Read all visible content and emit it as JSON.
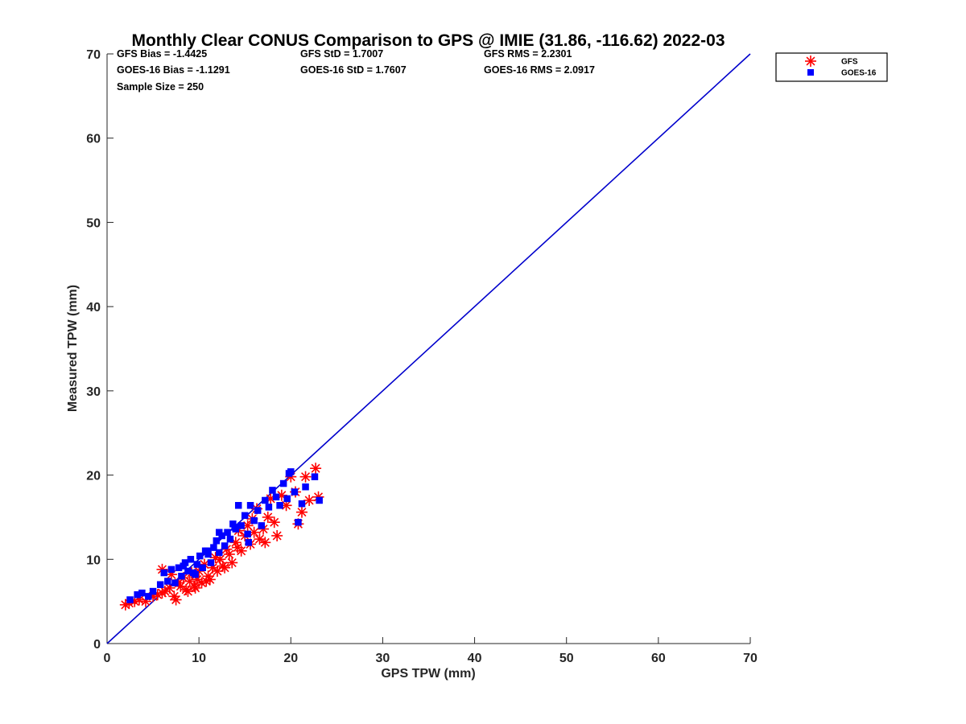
{
  "chart_data": {
    "type": "scatter",
    "title": "Monthly Clear CONUS Comparison to GPS @ IMIE (31.86, -116.62) 2022-03",
    "xlabel": "GPS TPW (mm)",
    "ylabel": "Measured TPW (mm)",
    "xlim": [
      0,
      70
    ],
    "ylim": [
      0,
      70
    ],
    "xticks": [
      "0",
      "10",
      "20",
      "30",
      "40",
      "50",
      "60",
      "70"
    ],
    "yticks": [
      "0",
      "10",
      "20",
      "30",
      "40",
      "50",
      "60",
      "70"
    ],
    "grid": false,
    "legend_position": "top-right",
    "stats": [
      [
        "GFS Bias = -1.4425",
        "GFS StD = 1.7007",
        "GFS RMS = 2.2301"
      ],
      [
        "GOES-16 Bias = -1.1291",
        "GOES-16 StD = 1.7607",
        "GOES-16 RMS = 2.0917"
      ],
      [
        "Sample Size = 250",
        "",
        ""
      ]
    ],
    "reference_line": {
      "x": [
        0,
        70
      ],
      "y": [
        0,
        70
      ],
      "color": "#0000cc"
    },
    "series": [
      {
        "name": "GFS",
        "marker": "asterisk",
        "color": "#ff0000",
        "x": [
          2.0,
          2.4,
          3.0,
          3.5,
          4.2,
          5.0,
          5.5,
          6.0,
          6.3,
          6.8,
          7.0,
          7.5,
          7.8,
          8.0,
          8.3,
          8.6,
          9.0,
          9.2,
          9.5,
          9.8,
          10.0,
          10.3,
          10.6,
          11.0,
          11.2,
          11.5,
          11.8,
          12.0,
          12.3,
          12.6,
          13.0,
          13.3,
          13.6,
          14.0,
          14.3,
          14.6,
          15.0,
          15.3,
          15.6,
          16.0,
          16.3,
          16.6,
          17.0,
          17.5,
          17.8,
          18.2,
          18.5,
          19.0,
          19.5,
          20.0,
          20.5,
          20.8,
          21.2,
          21.6,
          22.0,
          22.7,
          23.0,
          6.0,
          7.3,
          8.8,
          9.6,
          10.8,
          12.8,
          14.2,
          15.8,
          17.2
        ],
        "y": [
          4.6,
          4.8,
          5.0,
          5.2,
          5.0,
          5.6,
          5.8,
          8.8,
          6.2,
          6.6,
          8.2,
          5.2,
          7.2,
          6.8,
          7.8,
          6.4,
          7.4,
          8.4,
          6.8,
          7.6,
          8.6,
          7.2,
          9.4,
          8.0,
          7.6,
          9.0,
          10.2,
          8.6,
          10.0,
          9.2,
          11.2,
          10.6,
          9.6,
          12.0,
          13.4,
          11.0,
          12.8,
          14.0,
          11.8,
          13.2,
          16.0,
          12.4,
          13.6,
          15.0,
          17.2,
          14.4,
          12.8,
          17.6,
          16.4,
          19.8,
          18.0,
          14.2,
          15.6,
          19.8,
          17.0,
          20.8,
          17.4,
          6.0,
          5.6,
          6.2,
          6.6,
          7.4,
          9.0,
          11.4,
          14.8,
          12.0
        ]
      },
      {
        "name": "GOES-16",
        "marker": "square",
        "color": "#0000ff",
        "x": [
          2.5,
          3.3,
          3.8,
          4.5,
          5.0,
          5.8,
          6.2,
          6.6,
          7.0,
          7.4,
          7.8,
          8.1,
          8.5,
          8.8,
          9.1,
          9.4,
          9.8,
          10.1,
          10.4,
          10.7,
          11.0,
          11.3,
          11.6,
          11.9,
          12.2,
          12.5,
          12.8,
          13.1,
          13.4,
          13.7,
          14.0,
          14.3,
          14.6,
          15.0,
          15.3,
          15.6,
          16.0,
          16.4,
          16.8,
          17.2,
          17.6,
          18.0,
          18.4,
          18.8,
          19.2,
          19.6,
          20.0,
          20.4,
          20.8,
          21.2,
          21.6,
          22.6,
          23.1,
          8.3,
          10.9,
          13.9,
          15.4,
          19.8,
          12.2,
          9.6
        ],
        "y": [
          5.2,
          5.8,
          6.0,
          5.6,
          6.2,
          7.0,
          8.4,
          7.4,
          8.8,
          7.2,
          9.0,
          8.0,
          9.6,
          8.6,
          10.0,
          8.4,
          9.4,
          10.4,
          9.0,
          11.0,
          10.6,
          9.6,
          11.4,
          12.2,
          10.8,
          12.8,
          11.6,
          13.2,
          12.4,
          14.2,
          13.6,
          16.4,
          14.0,
          15.2,
          13.0,
          16.4,
          14.6,
          15.8,
          14.0,
          17.0,
          16.2,
          18.2,
          17.4,
          16.4,
          19.0,
          17.2,
          20.4,
          18.0,
          14.4,
          16.6,
          18.6,
          19.8,
          17.0,
          9.2,
          11.0,
          13.8,
          12.0,
          20.2,
          13.2,
          8.2
        ]
      }
    ]
  }
}
